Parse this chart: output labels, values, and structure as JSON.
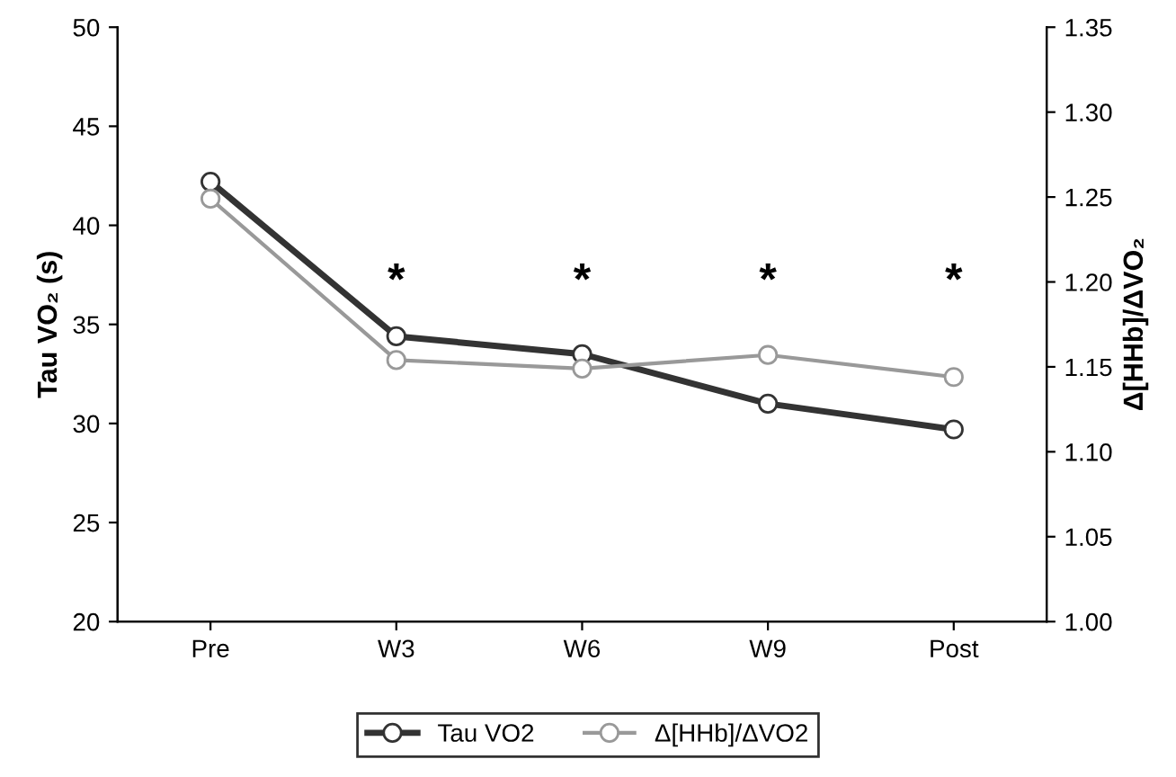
{
  "chart_data": {
    "type": "line",
    "ylabel": "Tau VO₂ (s)",
    "y2label": "Δ[HHb]/ΔVO₂",
    "categories": [
      "Pre",
      "W3",
      "W6",
      "W9",
      "Post"
    ],
    "series": [
      {
        "name": "Tau VO2",
        "color": "#333333",
        "values": [
          42.2,
          34.4,
          33.5,
          31.0,
          29.7
        ]
      },
      {
        "name": "Δ[HHb]/ΔVO2",
        "color": "#999999",
        "axis": "y2",
        "values": [
          1.249,
          1.154,
          1.149,
          1.157,
          1.144
        ]
      }
    ],
    "ylim": [
      20,
      50
    ],
    "yticks": [
      20,
      25,
      30,
      35,
      40,
      45,
      50
    ],
    "y2lim": [
      1.0,
      1.35
    ],
    "y2ticks": [
      {
        "value": 1.0,
        "label": "1.00"
      },
      {
        "value": 1.05,
        "label": "1.05"
      },
      {
        "value": 1.1,
        "label": "1.10"
      },
      {
        "value": 1.15,
        "label": "1.15"
      },
      {
        "value": 1.2,
        "label": "1.20"
      },
      {
        "value": 1.25,
        "label": "1.25"
      },
      {
        "value": 1.3,
        "label": "1.30"
      },
      {
        "value": 1.35,
        "label": "1.35"
      }
    ],
    "annotations": [
      "*",
      "*",
      "*",
      "*"
    ],
    "marker": "circle",
    "line_style": "solid",
    "grid": false,
    "legend": "bottom"
  }
}
